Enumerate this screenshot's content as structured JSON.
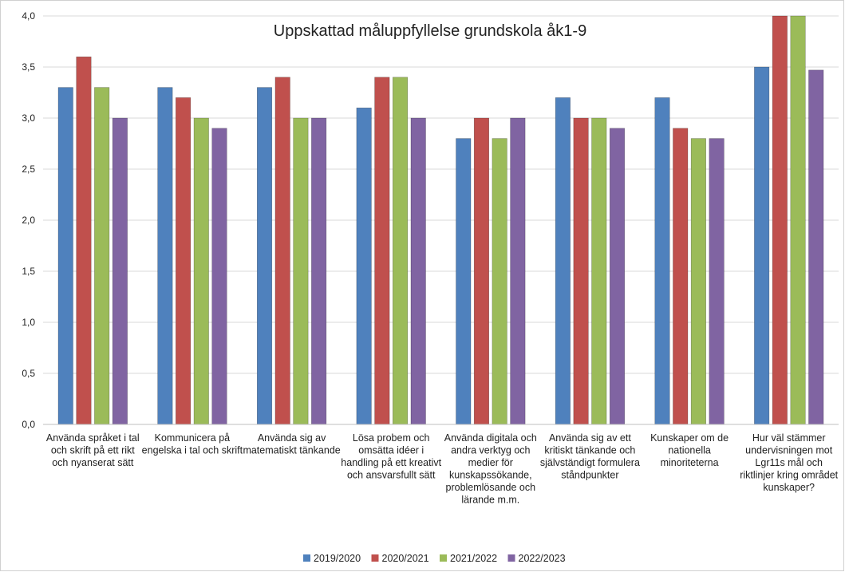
{
  "chart_data": {
    "type": "bar",
    "title": "Uppskattad måluppfyllelse grundskola åk1-9",
    "xlabel": "",
    "ylabel": "",
    "ylim": [
      0,
      4
    ],
    "yticks": [
      "0,0",
      "0,5",
      "1,0",
      "1,5",
      "2,0",
      "2,5",
      "3,0",
      "3,5",
      "4,0"
    ],
    "ytick_values": [
      0,
      0.5,
      1,
      1.5,
      2,
      2.5,
      3,
      3.5,
      4
    ],
    "grid": true,
    "legend_position": "bottom",
    "categories": [
      [
        "Använda språket i tal",
        "och skrift på ett rikt",
        "och nyanserat sätt"
      ],
      [
        "Kommunicera på",
        "engelska i tal och skrift"
      ],
      [
        "Använda sig av",
        "matematiskt tänkande"
      ],
      [
        "Lösa probem och",
        "omsätta idéer i",
        "handling på ett kreativt",
        "och ansvarsfullt sätt"
      ],
      [
        "Använda digitala och",
        "andra verktyg och",
        "medier för",
        "kunskapssökande,",
        "problemlösande och",
        "lärande m.m."
      ],
      [
        "Använda sig av ett",
        "kritiskt tänkande och",
        "självständigt formulera",
        "ståndpunkter"
      ],
      [
        "Kunskaper om de",
        "nationella",
        "minoriteterna"
      ],
      [
        "Hur väl stämmer",
        "undervisningen mot",
        "Lgr11s mål och",
        "riktlinjer kring området",
        "kunskaper?"
      ]
    ],
    "series": [
      {
        "name": "2019/2020",
        "color": "#4f81bd",
        "values": [
          3.3,
          3.3,
          3.3,
          3.1,
          2.8,
          3.2,
          3.2,
          3.5
        ]
      },
      {
        "name": "2020/2021",
        "color": "#c0504d",
        "values": [
          3.6,
          3.2,
          3.4,
          3.4,
          3.0,
          3.0,
          2.9,
          4.0
        ]
      },
      {
        "name": "2021/2022",
        "color": "#9bbb59",
        "values": [
          3.3,
          3.0,
          3.0,
          3.4,
          2.8,
          3.0,
          2.8,
          4.0
        ]
      },
      {
        "name": "2022/2023",
        "color": "#8064a2",
        "values": [
          3.0,
          2.9,
          3.0,
          3.0,
          3.0,
          2.9,
          2.8,
          3.47
        ]
      }
    ]
  }
}
